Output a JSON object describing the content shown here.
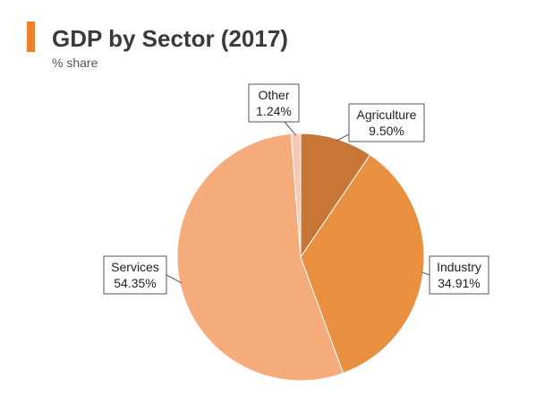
{
  "header": {
    "title": "GDP by Sector (2017)",
    "subtitle": "% share"
  },
  "colors": {
    "accent": "#ee7f2d"
  },
  "chart_data": {
    "type": "pie",
    "title": "GDP by Sector (2017)",
    "subtitle": "% share",
    "slices": [
      {
        "name": "Agriculture",
        "value": 9.5,
        "label": "9.50%",
        "color": "#c87638"
      },
      {
        "name": "Industry",
        "value": 34.91,
        "label": "34.91%",
        "color": "#e8903f"
      },
      {
        "name": "Services",
        "value": 54.35,
        "label": "54.35%",
        "color": "#f6ab7b"
      },
      {
        "name": "Other",
        "value": 1.24,
        "label": "1.24%",
        "color": "#f9c8b4"
      }
    ]
  }
}
